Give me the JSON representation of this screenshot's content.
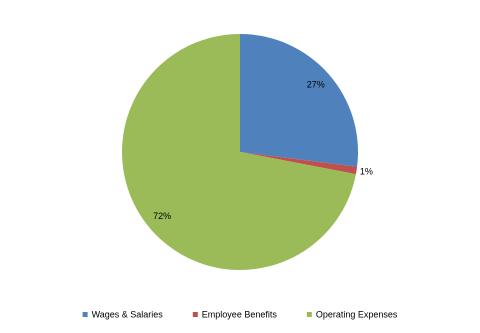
{
  "chart_data": {
    "type": "pie",
    "categories": [
      "Wages & Salaries",
      "Employee Benefits",
      "Operating Expenses"
    ],
    "values": [
      27,
      1,
      72
    ],
    "value_labels": [
      "27%",
      "1%",
      "72%"
    ],
    "colors": [
      "#4f81bd",
      "#c0504d",
      "#9bbb59"
    ],
    "legend": "bottom"
  }
}
